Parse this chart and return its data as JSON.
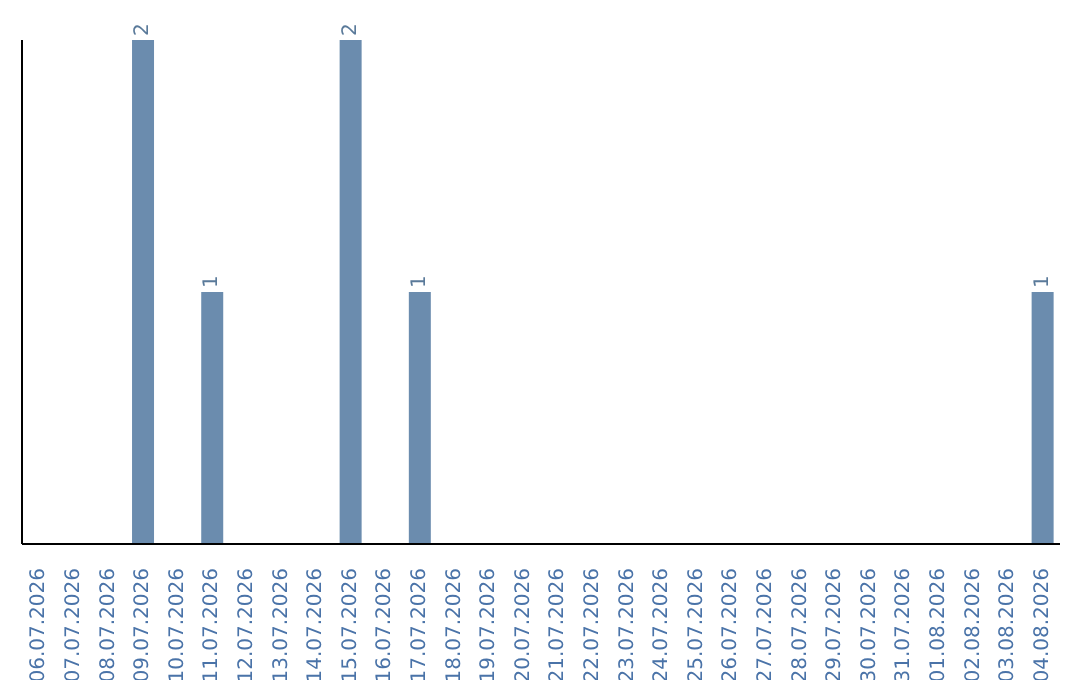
{
  "chart_data": {
    "type": "bar",
    "categories": [
      "06.07.2026",
      "07.07.2026",
      "08.07.2026",
      "09.07.2026",
      "10.07.2026",
      "11.07.2026",
      "12.07.2026",
      "13.07.2026",
      "14.07.2026",
      "15.07.2026",
      "16.07.2026",
      "17.07.2026",
      "18.07.2026",
      "19.07.2026",
      "20.07.2026",
      "21.07.2026",
      "22.07.2026",
      "23.07.2026",
      "24.07.2026",
      "25.07.2026",
      "26.07.2026",
      "27.07.2026",
      "28.07.2026",
      "29.07.2026",
      "30.07.2026",
      "31.07.2026",
      "01.08.2026",
      "02.08.2026",
      "03.08.2026",
      "04.08.2026"
    ],
    "values": [
      0,
      0,
      0,
      2,
      0,
      1,
      0,
      0,
      0,
      2,
      0,
      1,
      0,
      0,
      0,
      0,
      0,
      0,
      0,
      0,
      0,
      0,
      0,
      0,
      0,
      0,
      0,
      0,
      0,
      1
    ],
    "value_labels": [
      null,
      null,
      null,
      "2",
      null,
      "1",
      null,
      null,
      null,
      "2",
      null,
      "1",
      null,
      null,
      null,
      null,
      null,
      null,
      null,
      null,
      null,
      null,
      null,
      null,
      null,
      null,
      null,
      null,
      null,
      "1"
    ],
    "color": "#6b8cae",
    "tick_labels": "x",
    "grid": false,
    "legend": false
  }
}
